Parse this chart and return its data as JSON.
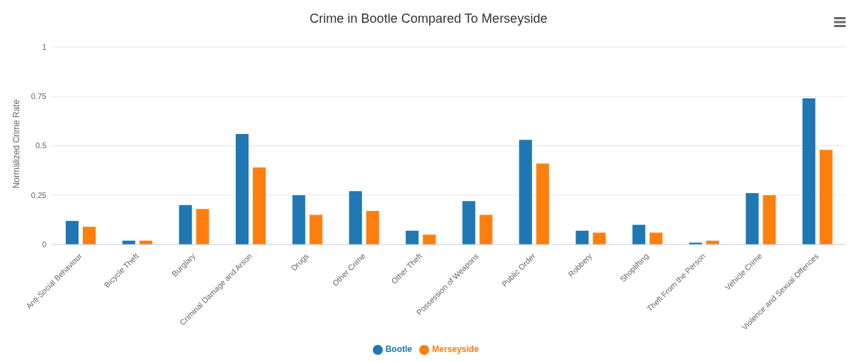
{
  "chart_data": {
    "type": "bar",
    "title": "Crime in Bootle Compared To Merseyside",
    "ylabel": "Normalized Crime Rate",
    "categories": [
      "Anti-Social Behaviour",
      "Bicycle Theft",
      "Burglary",
      "Criminal Damage and Arson",
      "Drugs",
      "Other Crime",
      "Other Theft",
      "Possession of Weapons",
      "Public Order",
      "Robbery",
      "Shoplifting",
      "Theft From the Person",
      "Vehicle Crime",
      "Violence and Sexual Offences"
    ],
    "series": [
      {
        "name": "Bootle",
        "color": "#1f77b4",
        "values": [
          0.12,
          0.02,
          0.2,
          0.56,
          0.25,
          0.27,
          0.07,
          0.22,
          0.53,
          0.07,
          0.1,
          0.01,
          0.26,
          0.74
        ]
      },
      {
        "name": "Merseyside",
        "color": "#ff7f0e",
        "values": [
          0.09,
          0.02,
          0.18,
          0.39,
          0.15,
          0.17,
          0.05,
          0.15,
          0.41,
          0.06,
          0.06,
          0.02,
          0.25,
          0.48
        ]
      }
    ],
    "ylim": [
      0,
      1
    ],
    "yticks": [
      0,
      0.25,
      0.5,
      0.75,
      1
    ],
    "grid": "y",
    "legend": "bottom"
  }
}
